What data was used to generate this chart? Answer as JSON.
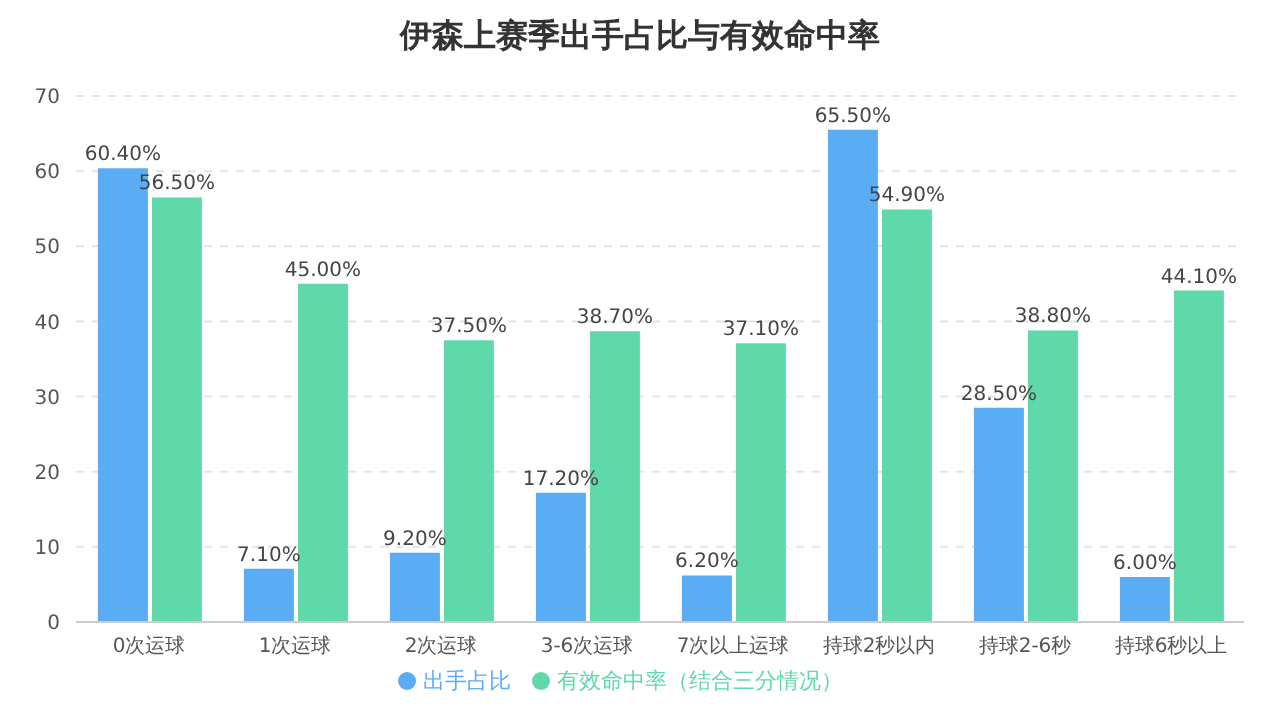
{
  "chart_data": {
    "type": "bar",
    "title": "伊森上赛季出手占比与有效命中率",
    "categories": [
      "0次运球",
      "1次运球",
      "2次运球",
      "3-6次运球",
      "7次以上运球",
      "持球2秒以内",
      "持球2-6秒",
      "持球6秒以上"
    ],
    "series": [
      {
        "name": "出手占比",
        "color": "#5aacf5",
        "values": [
          60.4,
          7.1,
          9.2,
          17.2,
          6.2,
          65.5,
          28.5,
          6.0
        ],
        "value_labels": [
          "60.40%",
          "7.10%",
          "9.20%",
          "17.20%",
          "6.20%",
          "65.50%",
          "28.50%",
          "6.00%"
        ]
      },
      {
        "name": "有效命中率（结合三分情况）",
        "color": "#5fd9aa",
        "values": [
          56.5,
          45.0,
          37.5,
          38.7,
          37.1,
          54.9,
          38.8,
          44.1
        ],
        "value_labels": [
          "56.50%",
          "45.00%",
          "37.50%",
          "38.70%",
          "37.10%",
          "54.90%",
          "38.80%",
          "44.10%"
        ]
      }
    ],
    "ylim": [
      0,
      70
    ],
    "yticks": [
      0,
      10,
      20,
      30,
      40,
      50,
      60,
      70
    ],
    "grid": "y",
    "legend": "bottom"
  }
}
